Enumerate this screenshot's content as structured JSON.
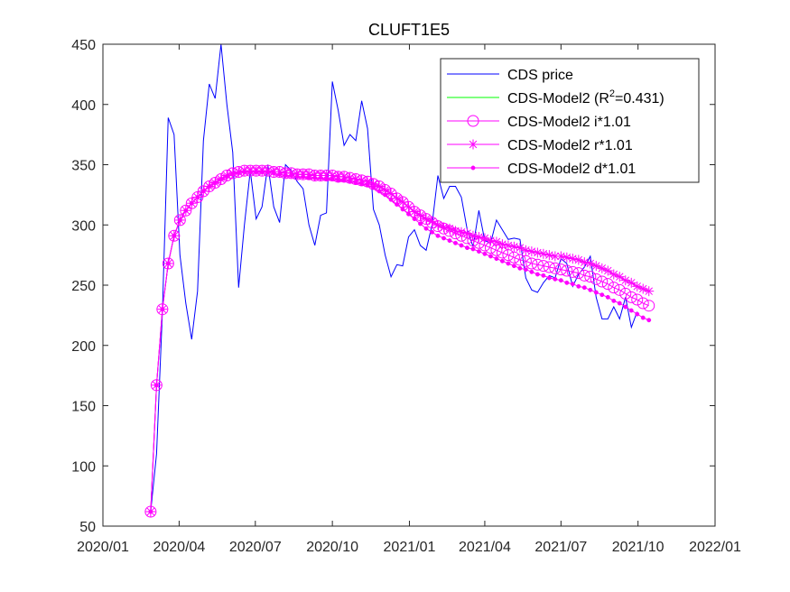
{
  "chart_data": {
    "type": "line",
    "title": "CLUFT1E5",
    "xlabel": "",
    "ylabel": "",
    "xlim": [
      "2020-01-01",
      "2022-01-01"
    ],
    "ylim": [
      50,
      450
    ],
    "x_ticks": [
      "2020/01",
      "2020/04",
      "2020/07",
      "2020/10",
      "2021/01",
      "2021/04",
      "2021/07",
      "2021/10",
      "2022/01"
    ],
    "y_ticks": [
      50,
      100,
      150,
      200,
      250,
      300,
      350,
      400,
      450
    ],
    "grid": false,
    "legend_position": "top-right",
    "x_start": "2020-02-27",
    "x_step_days": 7,
    "legend": [
      {
        "label_main": "CDS price",
        "label_sup": "",
        "label_end": "",
        "color": "#0000ff",
        "marker": "none"
      },
      {
        "label_main": "CDS-Model2 (R",
        "label_sup": "2",
        "label_end": "=0.431)",
        "color": "#00ff00",
        "marker": "none"
      },
      {
        "label_main": "CDS-Model2 i*1.01",
        "label_sup": "",
        "label_end": "",
        "color": "#ff00ff",
        "marker": "circle"
      },
      {
        "label_main": "CDS-Model2 r*1.01",
        "label_sup": "",
        "label_end": "",
        "color": "#ff00ff",
        "marker": "star"
      },
      {
        "label_main": "CDS-Model2 d*1.01",
        "label_sup": "",
        "label_end": "",
        "color": "#ff00ff",
        "marker": "dot"
      }
    ],
    "series": [
      {
        "name": "CDS price",
        "color": "#0000ff",
        "marker": "none",
        "values": [
          62,
          110,
          228,
          389,
          375,
          275,
          235,
          205,
          245,
          370,
          417,
          405,
          450,
          400,
          360,
          248,
          300,
          345,
          305,
          315,
          350,
          315,
          302,
          350,
          345,
          336,
          330,
          300,
          283,
          308,
          310,
          419,
          395,
          366,
          375,
          370,
          403,
          380,
          313,
          300,
          275,
          257,
          267,
          266,
          290,
          296,
          283,
          279,
          300,
          341,
          322,
          332,
          332,
          323,
          296,
          282,
          312,
          287,
          285,
          304,
          296,
          288,
          289,
          288,
          256,
          246,
          244,
          252,
          258,
          256,
          272,
          268,
          249,
          259,
          265,
          274,
          240,
          222,
          222,
          232,
          222,
          240,
          215,
          228
        ]
      },
      {
        "name": "CDS-Model2 (R2=0.431)",
        "color": "#00ff00",
        "marker": "none",
        "values": [
          62,
          167,
          230,
          268,
          291,
          304,
          312,
          318,
          323,
          328,
          332,
          335,
          338,
          341,
          343,
          344,
          345,
          345,
          345,
          345,
          345,
          344,
          344,
          343,
          343,
          342,
          342,
          342,
          341,
          341,
          341,
          341,
          340,
          340,
          339,
          338,
          337,
          336,
          334,
          332,
          329,
          326,
          322,
          319,
          315,
          311,
          308,
          305,
          303,
          300,
          298,
          297,
          295,
          294,
          293,
          291,
          290,
          289,
          287,
          286,
          284,
          283,
          282,
          281,
          279,
          278,
          277,
          276,
          275,
          274,
          274,
          273,
          272,
          271,
          269,
          268,
          266,
          264,
          262,
          259,
          257,
          254,
          252,
          249,
          247,
          245
        ]
      },
      {
        "name": "CDS-Model2 i*1.01",
        "color": "#ff00ff",
        "marker": "circle",
        "values": [
          62,
          167,
          230,
          268,
          291,
          304,
          312,
          318,
          323,
          328,
          332,
          335,
          338,
          341,
          343,
          344,
          345,
          345,
          345,
          345,
          345,
          344,
          344,
          343,
          343,
          342,
          342,
          342,
          341,
          341,
          341,
          341,
          340,
          340,
          339,
          338,
          337,
          336,
          334,
          332,
          329,
          326,
          322,
          319,
          315,
          311,
          308,
          305,
          302,
          299,
          297,
          295,
          293,
          291,
          289,
          287,
          285,
          283,
          281,
          279,
          277,
          275,
          273,
          271,
          270,
          268,
          267,
          266,
          265,
          264,
          263,
          262,
          261,
          260,
          258,
          257,
          255,
          253,
          251,
          248,
          246,
          243,
          240,
          238,
          235,
          233
        ]
      },
      {
        "name": "CDS-Model2 r*1.01",
        "color": "#ff00ff",
        "marker": "star",
        "values": [
          62,
          167,
          230,
          268,
          291,
          304,
          312,
          318,
          323,
          328,
          332,
          335,
          338,
          341,
          343,
          344,
          345,
          345,
          345,
          345,
          345,
          344,
          344,
          343,
          343,
          342,
          342,
          342,
          341,
          341,
          341,
          341,
          340,
          340,
          339,
          338,
          337,
          336,
          334,
          332,
          329,
          326,
          322,
          319,
          315,
          311,
          308,
          305,
          303,
          300,
          298,
          297,
          295,
          294,
          293,
          291,
          290,
          289,
          287,
          286,
          284,
          283,
          282,
          281,
          279,
          278,
          277,
          276,
          275,
          274,
          274,
          273,
          272,
          271,
          269,
          268,
          266,
          264,
          262,
          259,
          257,
          254,
          252,
          249,
          247,
          245
        ]
      },
      {
        "name": "CDS-Model2 d*1.01",
        "color": "#ff00ff",
        "marker": "dot",
        "values": [
          62,
          167,
          230,
          268,
          291,
          304,
          312,
          318,
          323,
          328,
          332,
          335,
          338,
          340,
          342,
          343,
          344,
          344,
          344,
          344,
          344,
          343,
          342,
          341,
          341,
          340,
          340,
          339,
          339,
          339,
          338,
          338,
          337,
          337,
          336,
          335,
          334,
          333,
          331,
          328,
          325,
          321,
          317,
          313,
          309,
          305,
          301,
          297,
          294,
          291,
          289,
          287,
          285,
          283,
          281,
          280,
          278,
          276,
          274,
          272,
          270,
          268,
          266,
          264,
          263,
          261,
          259,
          258,
          256,
          255,
          254,
          252,
          251,
          249,
          248,
          246,
          244,
          242,
          240,
          237,
          235,
          232,
          229,
          226,
          223,
          221
        ]
      }
    ]
  }
}
